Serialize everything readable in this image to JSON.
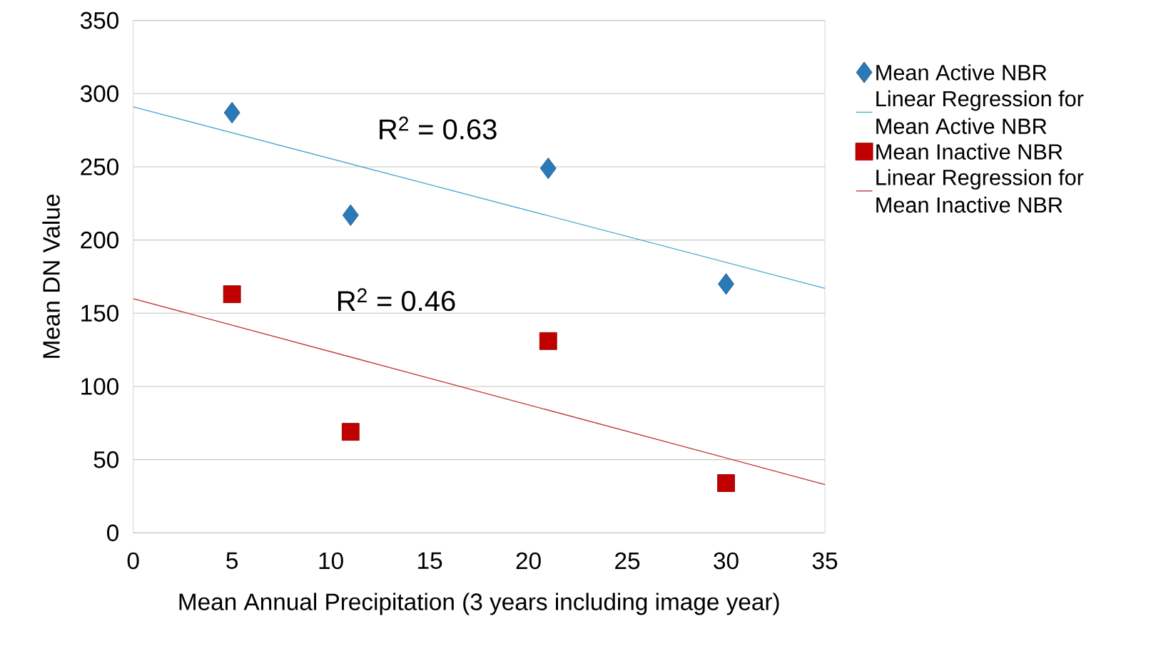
{
  "chart_data": {
    "type": "scatter",
    "xlabel": "Mean Annual Precipitation (3 years including image year)",
    "ylabel": "Mean DN Value",
    "xlim": [
      0,
      35
    ],
    "xticks": [
      0,
      5,
      10,
      15,
      20,
      25,
      30,
      35
    ],
    "ylim": [
      0,
      350
    ],
    "yticks": [
      0,
      50,
      100,
      150,
      200,
      250,
      300,
      350
    ],
    "grid": "y",
    "legend": "right",
    "series": [
      {
        "name": "Mean Active NBR",
        "type": "scatter",
        "marker": "diamond",
        "color": "#2a7ab8",
        "x": [
          5,
          11,
          21,
          30
        ],
        "values": [
          287,
          217,
          249,
          170
        ]
      },
      {
        "name": "Linear Regression for Mean Active NBR",
        "type": "line",
        "marker": "none",
        "color": "#4aa8d0",
        "x": [
          0,
          35
        ],
        "values": [
          291,
          167
        ]
      },
      {
        "name": "Mean Inactive NBR",
        "type": "scatter",
        "marker": "square",
        "color": "#c00000",
        "x": [
          5,
          11,
          21,
          30
        ],
        "values": [
          163,
          69,
          131,
          34
        ]
      },
      {
        "name": "Linear Regression for Mean Inactive NBR",
        "type": "line",
        "marker": "none",
        "color": "#c03030",
        "x": [
          0,
          35
        ],
        "values": [
          160,
          33
        ]
      }
    ],
    "annotations": [
      "R$^{2}$ = 0.63",
      "R$^{2}$ = 0.46"
    ]
  }
}
